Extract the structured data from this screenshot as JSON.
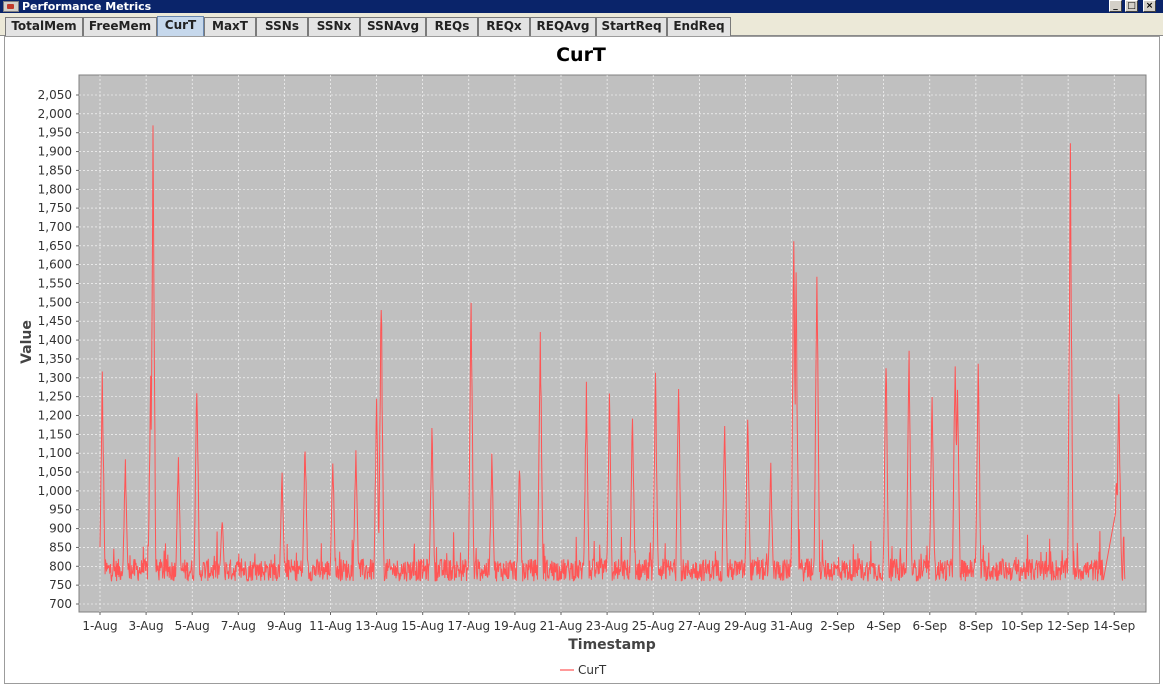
{
  "window": {
    "title": "Performance Metrics",
    "minimize_glyph": "_",
    "maximize_glyph": "□",
    "close_glyph": "×"
  },
  "tabs": [
    {
      "label": "TotalMem"
    },
    {
      "label": "FreeMem"
    },
    {
      "label": "CurT"
    },
    {
      "label": "MaxT"
    },
    {
      "label": "SSNs"
    },
    {
      "label": "SSNx"
    },
    {
      "label": "SSNAvg"
    },
    {
      "label": "REQs"
    },
    {
      "label": "REQx"
    },
    {
      "label": "REQAvg"
    },
    {
      "label": "StartReq"
    },
    {
      "label": "EndReq"
    }
  ],
  "active_tab": "CurT",
  "chart_data": {
    "type": "line",
    "title": "CurT",
    "xlabel": "Timestamp",
    "ylabel": "Value",
    "legend": "bottom-center",
    "grid": true,
    "ylim": [
      700,
      2050
    ],
    "yticks": [
      "700",
      "750",
      "800",
      "850",
      "900",
      "950",
      "1,000",
      "1,050",
      "1,100",
      "1,150",
      "1,200",
      "1,250",
      "1,300",
      "1,350",
      "1,400",
      "1,450",
      "1,500",
      "1,550",
      "1,600",
      "1,650",
      "1,700",
      "1,750",
      "1,800",
      "1,850",
      "1,900",
      "1,950",
      "2,000",
      "2,050"
    ],
    "xticks": [
      "1-Aug",
      "3-Aug",
      "5-Aug",
      "7-Aug",
      "9-Aug",
      "11-Aug",
      "13-Aug",
      "15-Aug",
      "17-Aug",
      "19-Aug",
      "21-Aug",
      "23-Aug",
      "25-Aug",
      "27-Aug",
      "29-Aug",
      "31-Aug",
      "2-Sep",
      "4-Sep",
      "6-Sep",
      "8-Sep",
      "10-Sep",
      "12-Sep",
      "14-Sep"
    ],
    "baseline_range": [
      760,
      820
    ],
    "series": [
      {
        "name": "CurT",
        "color": "#ff5555",
        "peaks": [
          {
            "day": 0.1,
            "value": 1335
          },
          {
            "day": 1.1,
            "value": 1100
          },
          {
            "day": 2.2,
            "value": 1320
          },
          {
            "day": 2.3,
            "value": 2005
          },
          {
            "day": 3.4,
            "value": 1125
          },
          {
            "day": 4.2,
            "value": 1345
          },
          {
            "day": 5.3,
            "value": 940
          },
          {
            "day": 7.9,
            "value": 1060
          },
          {
            "day": 8.9,
            "value": 1165
          },
          {
            "day": 10.1,
            "value": 1120
          },
          {
            "day": 11.1,
            "value": 1145
          },
          {
            "day": 12.0,
            "value": 1270
          },
          {
            "day": 12.2,
            "value": 1575
          },
          {
            "day": 14.4,
            "value": 1210
          },
          {
            "day": 16.1,
            "value": 1555
          },
          {
            "day": 17.0,
            "value": 1105
          },
          {
            "day": 18.2,
            "value": 1095
          },
          {
            "day": 19.1,
            "value": 1490
          },
          {
            "day": 21.1,
            "value": 1290
          },
          {
            "day": 22.1,
            "value": 1280
          },
          {
            "day": 23.1,
            "value": 1230
          },
          {
            "day": 24.1,
            "value": 1325
          },
          {
            "day": 25.1,
            "value": 1360
          },
          {
            "day": 27.1,
            "value": 1240
          },
          {
            "day": 28.1,
            "value": 1255
          },
          {
            "day": 29.1,
            "value": 1075
          },
          {
            "day": 30.1,
            "value": 1725
          },
          {
            "day": 30.2,
            "value": 1580
          },
          {
            "day": 31.1,
            "value": 1670
          },
          {
            "day": 34.1,
            "value": 1400
          },
          {
            "day": 35.1,
            "value": 1410
          },
          {
            "day": 36.1,
            "value": 1305
          },
          {
            "day": 37.1,
            "value": 1415
          },
          {
            "day": 37.2,
            "value": 1350
          },
          {
            "day": 38.1,
            "value": 1375
          },
          {
            "day": 42.1,
            "value": 1940
          },
          {
            "day": 43.6,
            "value": 760
          },
          {
            "day": 44.1,
            "value": 1060
          },
          {
            "day": 44.2,
            "value": 1295
          },
          {
            "day": 44.5,
            "value": 770
          }
        ]
      }
    ]
  }
}
